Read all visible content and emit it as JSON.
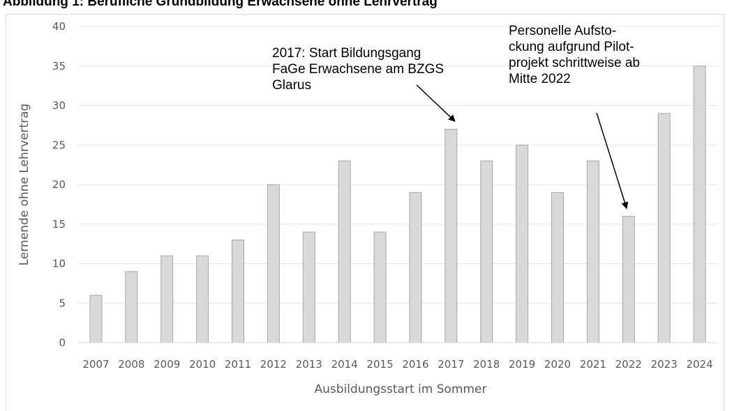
{
  "caption": "Abbildung 1: Berufliche Grundbildung Erwachsene ohne Lehrvertrag",
  "chart_data": {
    "type": "bar",
    "title": "",
    "xlabel": "Ausbildungsstart im Sommer",
    "ylabel": "Lernende ohne Lehrvertrag",
    "ylim": [
      0,
      40
    ],
    "yticks": [
      0,
      5,
      10,
      15,
      20,
      25,
      30,
      35,
      40
    ],
    "grid": true,
    "legend": "none",
    "bar_color": "#d9d9d9",
    "bar_edge_color": "#a6a6a6",
    "categories": [
      "2007",
      "2008",
      "2009",
      "2010",
      "2011",
      "2012",
      "2013",
      "2014",
      "2015",
      "2016",
      "2017",
      "2018",
      "2019",
      "2020",
      "2021",
      "2022",
      "2023",
      "2024"
    ],
    "values": [
      6,
      9,
      11,
      11,
      13,
      20,
      14,
      23,
      14,
      19,
      27,
      23,
      25,
      19,
      23,
      16,
      29,
      35
    ],
    "annotations": [
      {
        "target": "2017",
        "lines": [
          "2017: Start Bildungsgang",
          "FaGe Erwachsene am BZGS",
          "Glarus"
        ]
      },
      {
        "target": "2022",
        "lines": [
          "Personelle Aufsto-",
          "ckung aufgrund Pilot-",
          "projekt schrittweise ab",
          "Mitte 2022"
        ]
      }
    ]
  }
}
